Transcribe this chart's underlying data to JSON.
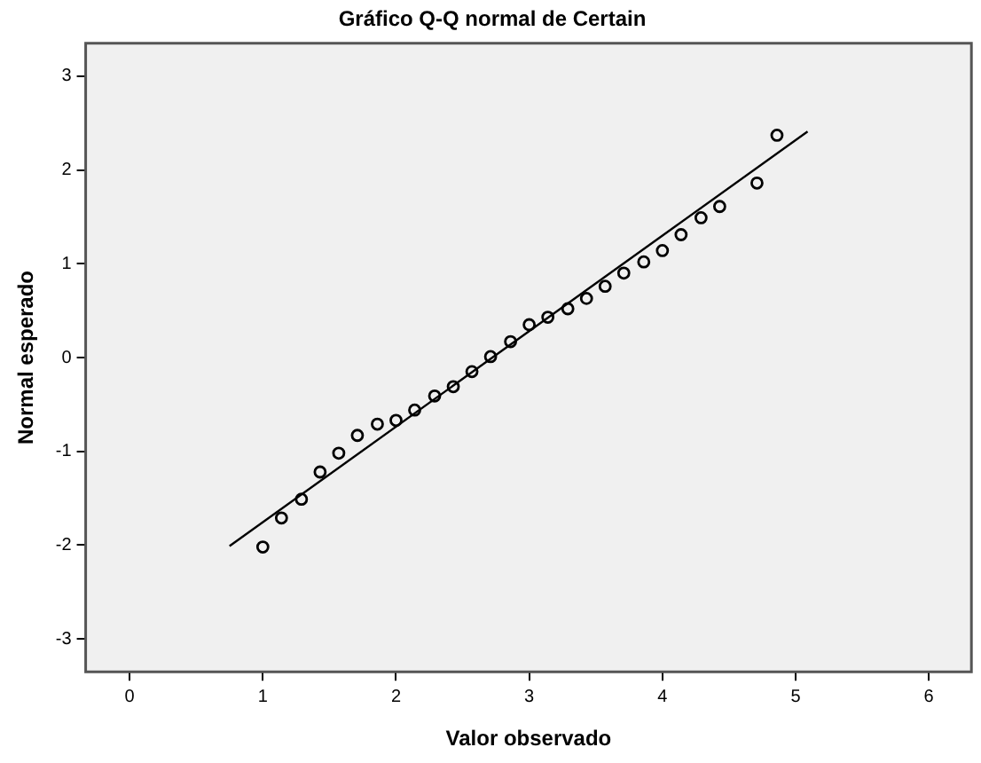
{
  "chart_data": {
    "type": "scatter",
    "title": "Gráfico Q-Q normal de Certain",
    "xlabel": "Valor observado",
    "ylabel": "Normal esperado",
    "xlim": [
      -0.33,
      6.32
    ],
    "ylim": [
      -3.35,
      3.35
    ],
    "xticks": [
      0,
      1,
      2,
      3,
      4,
      5,
      6
    ],
    "yticks": [
      -3,
      -2,
      -1,
      0,
      1,
      2,
      3
    ],
    "grid": false,
    "legend": false,
    "marker": "circle",
    "series": [
      {
        "color": "#000000",
        "x": [
          1,
          1.14,
          1.29,
          1.43,
          1.57,
          1.71,
          1.86,
          2,
          2.14,
          2.29,
          2.43,
          2.57,
          2.71,
          2.86,
          3,
          3.14,
          3.29,
          3.43,
          3.57,
          3.71,
          3.86,
          4,
          4.14,
          4.29,
          4.43,
          4.71,
          4.86
        ],
        "values": [
          -2.02,
          -1.71,
          -1.51,
          -1.22,
          -1.02,
          -0.83,
          -0.71,
          -0.67,
          -0.56,
          -0.41,
          -0.31,
          -0.15,
          0.01,
          0.17,
          0.35,
          0.43,
          0.52,
          0.63,
          0.76,
          0.9,
          1.02,
          1.14,
          1.31,
          1.49,
          1.61,
          1.86,
          2.37
        ]
      },
      {
        "type": "line",
        "color": "#000000",
        "marker": "none",
        "line_style": "solid",
        "x": [
          0.75,
          5.09
        ],
        "values": [
          -2.01,
          2.41
        ]
      }
    ]
  }
}
